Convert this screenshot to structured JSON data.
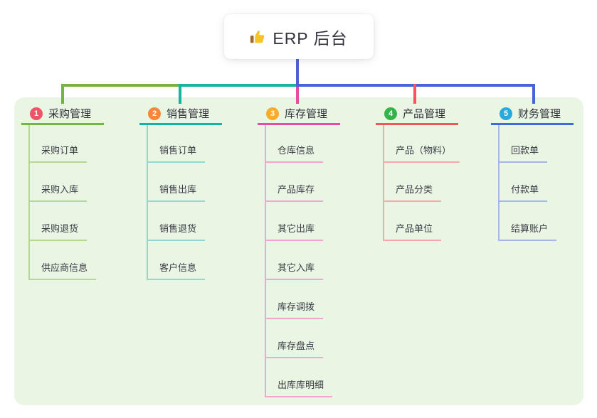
{
  "canvas": {
    "panel_bg": "#e9f6e3"
  },
  "root": {
    "icon": "thumbs-up-icon",
    "label": "ERP 后台"
  },
  "connectors": {
    "trunk_color": "#4c63d2",
    "blue_rail_color": "#4467d8"
  },
  "branches": [
    {
      "index": "1",
      "title": "采购管理",
      "colors": {
        "badge": "#ef5368",
        "line": "#76b340",
        "line_light": "#b5d890"
      },
      "children": [
        "采购订单",
        "采购入库",
        "采购退货",
        "供应商信息"
      ]
    },
    {
      "index": "2",
      "title": "销售管理",
      "colors": {
        "badge": "#f9863a",
        "line": "#14b3a6",
        "line_light": "#8fd9d1"
      },
      "children": [
        "销售订单",
        "销售出库",
        "销售退货",
        "客户信息"
      ]
    },
    {
      "index": "3",
      "title": "库存管理",
      "colors": {
        "badge": "#fbab2c",
        "line": "#ea4b9d",
        "line_light": "#f3a6cd"
      },
      "children": [
        "仓库信息",
        "产品库存",
        "其它出库",
        "其它入库",
        "库存调拨",
        "库存盘点",
        "出库库明细"
      ]
    },
    {
      "index": "4",
      "title": "产品管理",
      "colors": {
        "badge": "#33b348",
        "line": "#f2555e",
        "line_light": "#f8a7ab"
      },
      "children": [
        "产品（物料）",
        "产品分类",
        "产品单位"
      ]
    },
    {
      "index": "5",
      "title": "财务管理",
      "colors": {
        "badge": "#29a9dc",
        "line": "#3f6ad8",
        "line_light": "#a3b6ec"
      },
      "children": [
        "回款单",
        "付款单",
        "结算账户"
      ]
    }
  ]
}
